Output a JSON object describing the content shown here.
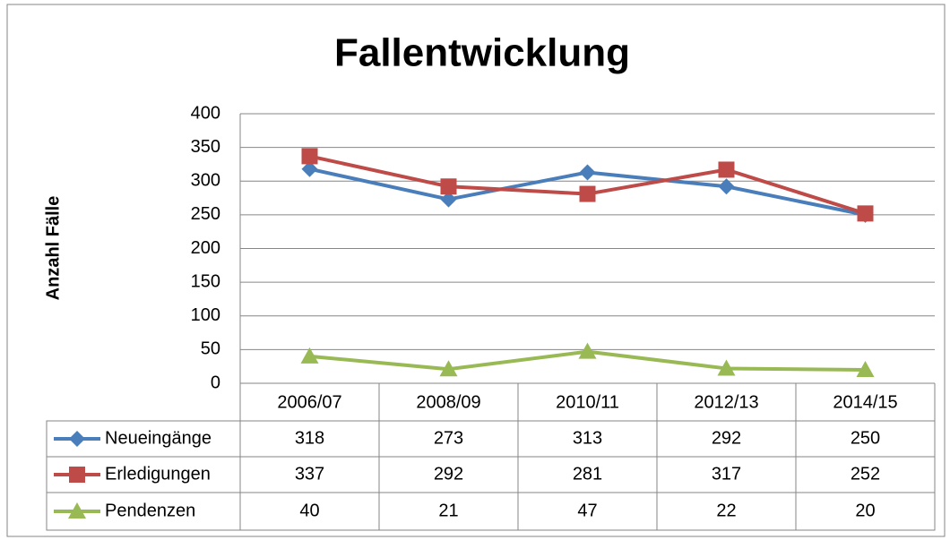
{
  "chart_data": {
    "type": "line",
    "title": "Fallentwicklung",
    "y_label": "Anzahl Fälle",
    "categories": [
      "2006/07",
      "2008/09",
      "2010/11",
      "2012/13",
      "2014/15"
    ],
    "series": [
      {
        "name": "Neueingänge",
        "color": "#4a7ebb",
        "marker": "diamond",
        "values": [
          318,
          273,
          313,
          292,
          250
        ]
      },
      {
        "name": "Erledigungen",
        "color": "#be4b48",
        "marker": "square",
        "values": [
          337,
          292,
          281,
          317,
          252
        ]
      },
      {
        "name": "Pendenzen",
        "color": "#98b954",
        "marker": "triangle",
        "values": [
          40,
          21,
          47,
          22,
          20
        ]
      }
    ],
    "ylim": [
      0,
      400
    ],
    "yticks": [
      0,
      50,
      100,
      150,
      200,
      250,
      300,
      350,
      400
    ],
    "grid": true,
    "data_table": true
  }
}
